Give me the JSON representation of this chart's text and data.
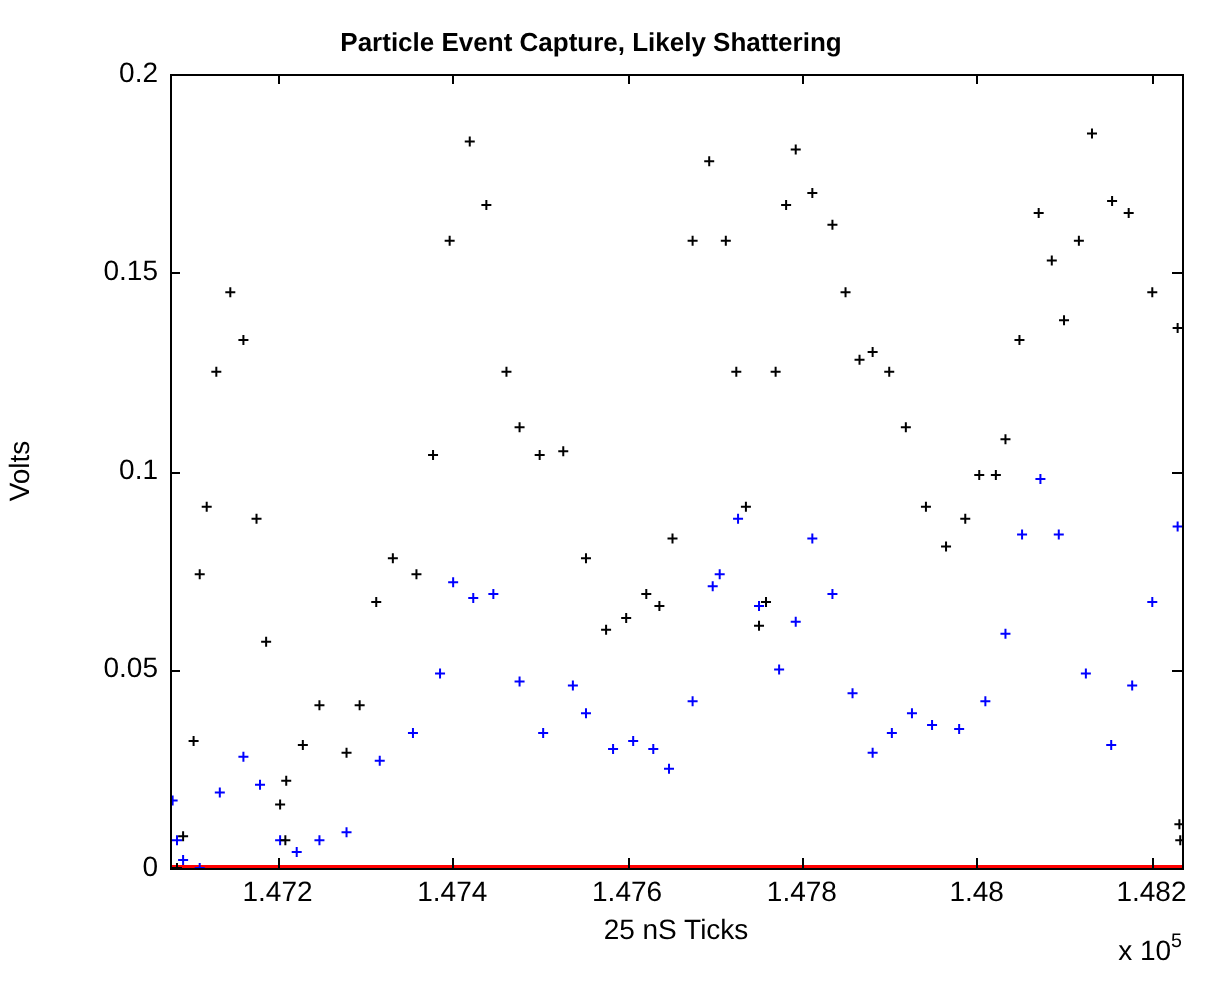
{
  "chart_data": {
    "type": "scatter",
    "title": "Particle Event Capture, Likely Shattering",
    "xlabel": "25 nS Ticks",
    "ylabel": "Volts",
    "annotations": [
      "x 10$^{5}$"
    ],
    "xlim": [
      1.47077,
      1.48235
    ],
    "xticks": [
      1.472,
      1.474,
      1.476,
      1.478,
      1.48,
      1.482
    ],
    "ylim": [
      0,
      0.2
    ],
    "yticks": [
      0,
      0.05,
      0.1,
      0.15,
      0.2
    ],
    "grid": false,
    "legend": false,
    "marker": "cross",
    "series": [
      {
        "color": "#000000",
        "x": [
          1.47085,
          1.47092,
          1.47104,
          1.47111,
          1.47119,
          1.4713,
          1.47146,
          1.47161,
          1.47176,
          1.47187,
          1.47203,
          1.47209,
          1.4721,
          1.47229,
          1.47248,
          1.47279,
          1.47294,
          1.47313,
          1.47332,
          1.47359,
          1.47378,
          1.47397,
          1.4742,
          1.47439,
          1.47462,
          1.47477,
          1.475,
          1.47527,
          1.47553,
          1.47576,
          1.47599,
          1.47622,
          1.47637,
          1.47652,
          1.47675,
          1.47694,
          1.47713,
          1.47725,
          1.47736,
          1.47751,
          1.47759,
          1.4777,
          1.47782,
          1.47793,
          1.47812,
          1.47835,
          1.4785,
          1.47866,
          1.47881,
          1.479,
          1.47919,
          1.47942,
          1.47965,
          1.47987,
          1.48003,
          1.48022,
          1.48033,
          1.48049,
          1.48071,
          1.48086,
          1.481,
          1.48117,
          1.48132,
          1.48155,
          1.48174,
          1.48201,
          1.4823,
          1.48232,
          1.48233
        ],
        "values": [
          0,
          0.008,
          0.032,
          0.074,
          0.091,
          0.125,
          0.145,
          0.133,
          0.088,
          0.057,
          0.016,
          0.007,
          0.022,
          0.031,
          0.041,
          0.029,
          0.041,
          0.067,
          0.078,
          0.074,
          0.104,
          0.158,
          0.183,
          0.167,
          0.125,
          0.111,
          0.104,
          0.105,
          0.078,
          0.06,
          0.063,
          0.069,
          0.066,
          0.083,
          0.158,
          0.178,
          0.158,
          0.125,
          0.091,
          0.061,
          0.067,
          0.125,
          0.167,
          0.181,
          0.17,
          0.162,
          0.145,
          0.128,
          0.13,
          0.125,
          0.111,
          0.091,
          0.081,
          0.088,
          0.099,
          0.099,
          0.108,
          0.133,
          0.165,
          0.153,
          0.138,
          0.158,
          0.185,
          0.168,
          0.165,
          0.145,
          0.136,
          0.011,
          0.007
        ]
      },
      {
        "color": "#0000ff",
        "x": [
          1.4708,
          1.47085,
          1.47092,
          1.47111,
          1.47134,
          1.47161,
          1.4718,
          1.47203,
          1.47222,
          1.47248,
          1.47279,
          1.47317,
          1.47355,
          1.47386,
          1.47401,
          1.47424,
          1.47447,
          1.47477,
          1.47504,
          1.47538,
          1.47553,
          1.47584,
          1.47607,
          1.4763,
          1.47648,
          1.47675,
          1.47698,
          1.47706,
          1.47727,
          1.47751,
          1.47774,
          1.47793,
          1.47812,
          1.47835,
          1.47858,
          1.47881,
          1.47903,
          1.47926,
          1.47949,
          1.4798,
          1.4801,
          1.48033,
          1.48052,
          1.48073,
          1.48094,
          1.48125,
          1.48154,
          1.48178,
          1.48201,
          1.4823
        ],
        "values": [
          0.017,
          0.007,
          0.002,
          0,
          0.019,
          0.028,
          0.021,
          0.007,
          0.004,
          0.007,
          0.009,
          0.027,
          0.034,
          0.049,
          0.072,
          0.068,
          0.069,
          0.047,
          0.034,
          0.046,
          0.039,
          0.03,
          0.032,
          0.03,
          0.025,
          0.042,
          0.071,
          0.074,
          0.088,
          0.066,
          0.05,
          0.062,
          0.083,
          0.069,
          0.044,
          0.029,
          0.034,
          0.039,
          0.036,
          0.035,
          0.042,
          0.059,
          0.084,
          0.098,
          0.084,
          0.049,
          0.031,
          0.046,
          0.067,
          0.086
        ]
      },
      {
        "type": "line",
        "marker": "none",
        "color": "#ff0000",
        "x": [
          1.47077,
          1.48235
        ],
        "values": [
          0,
          0
        ]
      }
    ]
  }
}
